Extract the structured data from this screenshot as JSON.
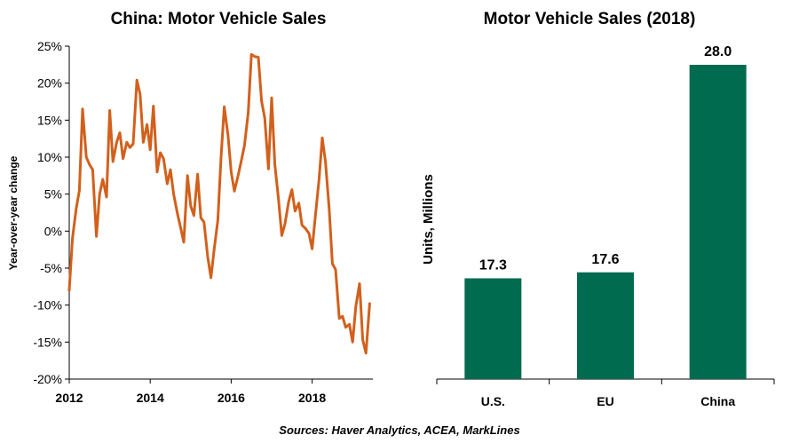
{
  "source": "Sources: Haver Analytics, ACEA, MarkLines",
  "chart_data": [
    {
      "type": "line",
      "title": "China: Motor Vehicle Sales",
      "xlabel": "",
      "ylabel": "Year-over-year change",
      "ylim": [
        -20,
        25
      ],
      "yticks": [
        25,
        20,
        15,
        10,
        5,
        0,
        -5,
        -10,
        -15,
        -20
      ],
      "ytick_labels": [
        "25%",
        "20%",
        "15%",
        "10%",
        "5%",
        "0%",
        "-5%",
        "-10%",
        "-15%",
        "-20%"
      ],
      "xlim": [
        2012,
        2019.5
      ],
      "xticks": [
        2012,
        2014,
        2016,
        2018
      ],
      "xtick_labels": [
        "2012",
        "2014",
        "2016",
        "2018"
      ],
      "line_color": "#d2601c",
      "series": [
        {
          "x": [
            2012.0,
            2012.08,
            2012.17,
            2012.25,
            2012.33,
            2012.42,
            2012.5,
            2012.58,
            2012.67,
            2012.75,
            2012.83,
            2012.92,
            2013.0,
            2013.08,
            2013.17,
            2013.25,
            2013.33,
            2013.42,
            2013.5,
            2013.58,
            2013.67,
            2013.75,
            2013.83,
            2013.92,
            2014.0,
            2014.08,
            2014.17,
            2014.25,
            2014.33,
            2014.42,
            2014.5,
            2014.58,
            2014.67,
            2014.75,
            2014.83,
            2014.92,
            2015.0,
            2015.08,
            2015.17,
            2015.25,
            2015.33,
            2015.42,
            2015.5,
            2015.58,
            2015.67,
            2015.75,
            2015.83,
            2015.92,
            2016.0,
            2016.08,
            2016.17,
            2016.25,
            2016.33,
            2016.42,
            2016.5,
            2016.58,
            2016.67,
            2016.75,
            2016.83,
            2016.92,
            2017.0,
            2017.08,
            2017.17,
            2017.25,
            2017.33,
            2017.42,
            2017.5,
            2017.58,
            2017.67,
            2017.75,
            2017.83,
            2017.92,
            2018.0,
            2018.08,
            2018.17,
            2018.25,
            2018.33,
            2018.42,
            2018.5,
            2018.58,
            2018.67,
            2018.75,
            2018.83,
            2018.92,
            2019.0,
            2019.08,
            2019.17,
            2019.25,
            2019.33,
            2019.42
          ],
          "values": [
            -8.0,
            -1.0,
            3.0,
            5.5,
            16.5,
            10.0,
            9.0,
            8.3,
            -0.7,
            5.0,
            7.0,
            4.6,
            16.3,
            9.4,
            12.0,
            13.3,
            9.8,
            12.0,
            11.3,
            11.8,
            20.4,
            18.5,
            12.0,
            14.4,
            11.0,
            16.9,
            8.0,
            10.6,
            9.8,
            6.4,
            8.3,
            5.0,
            2.4,
            0.5,
            -1.5,
            7.5,
            3.4,
            2.1,
            7.7,
            1.8,
            1.2,
            -3.5,
            -6.3,
            -2.5,
            1.5,
            10.0,
            16.8,
            13.0,
            8.0,
            5.4,
            7.5,
            9.5,
            11.6,
            16.0,
            23.9,
            23.6,
            23.5,
            17.6,
            15.3,
            8.4,
            18.0,
            9.0,
            4.2,
            -0.6,
            1.0,
            4.0,
            5.6,
            2.7,
            3.8,
            0.8,
            0.4,
            -0.3,
            -2.4,
            2.0,
            7.0,
            12.6,
            9.4,
            3.0,
            -4.4,
            -5.2,
            -11.8,
            -11.5,
            -13.0,
            -12.6,
            -15.0,
            -10.2,
            -7.1,
            -14.7,
            -16.5,
            -9.8
          ]
        }
      ]
    },
    {
      "type": "bar",
      "title": "Motor Vehicle Sales (2018)",
      "xlabel": "",
      "ylabel": "Units, Millions",
      "categories": [
        "U.S.",
        "EU",
        "China"
      ],
      "values": [
        17.3,
        17.6,
        28.0
      ],
      "data_labels": [
        "17.3",
        "17.6",
        "28.0"
      ],
      "bar_color": "#006b4f"
    }
  ]
}
